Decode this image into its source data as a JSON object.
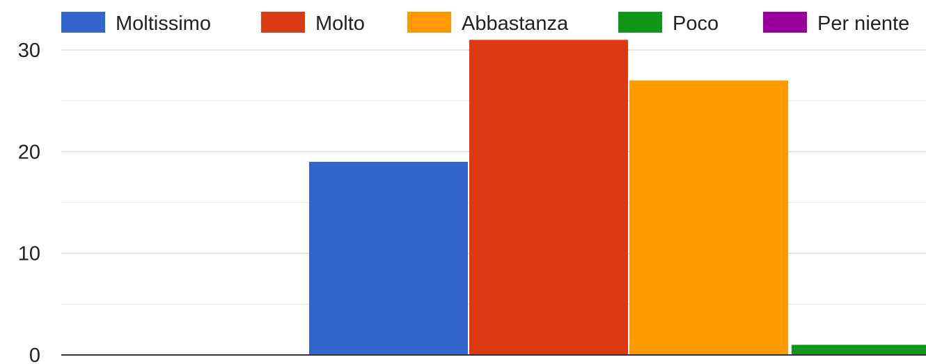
{
  "chart_data": {
    "type": "bar",
    "title": "",
    "xlabel": "",
    "ylabel": "",
    "ylim": [
      0,
      32
    ],
    "yticks": [
      0,
      10,
      20,
      30
    ],
    "grid": true,
    "legend_position": "top",
    "series": [
      {
        "name": "Moltissimo",
        "color": "#3366cc",
        "value": 0
      },
      {
        "name": "Molto",
        "color": "#dc3912",
        "value": 0
      },
      {
        "name": "Abbastanza",
        "color": "#ff9900",
        "value": 0
      },
      {
        "name": "Poco",
        "color": "#109618",
        "value": 0
      },
      {
        "name": "Per niente",
        "color": "#990099",
        "value": 0
      }
    ],
    "bars": [
      {
        "series": "Moltissimo",
        "value": 19
      },
      {
        "series": "Molto",
        "value": 31
      },
      {
        "series": "Abbastanza",
        "value": 27
      },
      {
        "series": "Poco",
        "value": 1
      }
    ]
  }
}
